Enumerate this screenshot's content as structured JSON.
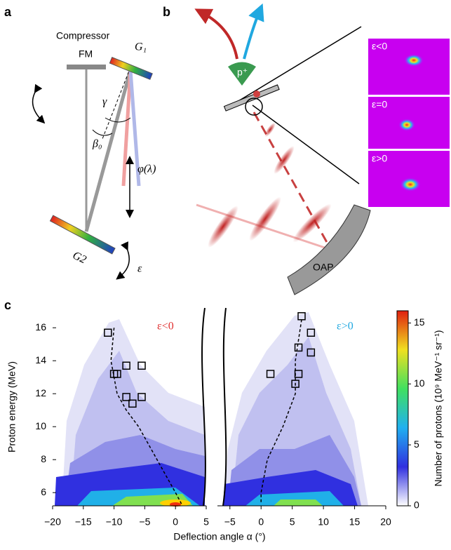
{
  "figure": {
    "panel_labels": [
      "a",
      "b",
      "c"
    ],
    "a": {
      "title": "Compressor",
      "fm": "FM",
      "g1": "G₁",
      "g2": "G2",
      "gamma": "γ",
      "beta": "β₀",
      "phi": "φ(λ)",
      "epsilon": "ε"
    },
    "b": {
      "proton": "p⁺",
      "oap": "OAP",
      "insets": [
        "ε<0",
        "ε=0",
        "ε>0"
      ]
    }
  },
  "chart_data": {
    "type": "scatter",
    "ylabel": "Proton energy (MeV)",
    "xlabel": "Deflection angle α (°)",
    "ylim": [
      5.2,
      17.2
    ],
    "yticks": [
      6,
      8,
      10,
      12,
      14,
      16
    ],
    "panels": [
      {
        "xlim": [
          -20,
          5
        ],
        "xticks": [
          {
            "value": -20,
            "label": "−20"
          },
          {
            "value": -15,
            "label": "−15"
          },
          {
            "value": -10,
            "label": "−10"
          },
          {
            "value": -5,
            "label": "−5"
          },
          0,
          5
        ],
        "annotation": "ε<0",
        "annotation_color": "#e03030",
        "points": {
          "x": [
            -11,
            -10,
            -9.5,
            -8,
            -8,
            -7,
            -5.5,
            -5.5
          ],
          "y": [
            15.7,
            13.2,
            13.2,
            13.7,
            11.8,
            11.4,
            13.7,
            11.8
          ]
        },
        "curve": {
          "x": [
            -10,
            -10.5,
            -9.5,
            -8,
            -6,
            -3,
            0,
            1
          ],
          "y": [
            16,
            14,
            12,
            11,
            10,
            8,
            6,
            5.3
          ]
        }
      },
      {
        "xlim": [
          -7,
          20
        ],
        "xticks": [
          {
            "value": -5,
            "label": "−5"
          },
          0,
          5,
          10,
          15,
          20
        ],
        "annotation": "ε>0",
        "annotation_color": "#20a8e0",
        "points": {
          "x": [
            6.5,
            8,
            6,
            8,
            1.5,
            5.5,
            6
          ],
          "y": [
            16.7,
            15.7,
            14.8,
            14.5,
            13.2,
            12.6,
            13.2
          ]
        },
        "curve": {
          "x": [
            6.5,
            5.5,
            5.5,
            3.5,
            1,
            0,
            0
          ],
          "y": [
            16.5,
            14,
            12,
            10,
            8,
            6,
            5.3
          ]
        }
      }
    ],
    "colorbar": {
      "label": "Number of protons (10⁹ MeV⁻¹ sr⁻¹)",
      "lim": [
        0,
        16
      ],
      "ticks": [
        0,
        5,
        10,
        15
      ]
    }
  }
}
